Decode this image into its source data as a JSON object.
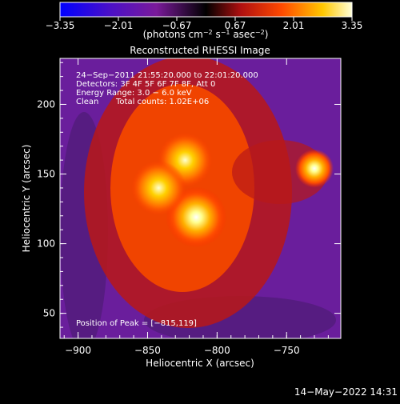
{
  "chart_data": {
    "type": "heatmap",
    "title": "Reconstructed RHESSI Image",
    "xlabel": "Heliocentric X (arcsec)",
    "ylabel": "Heliocentric Y (arcsec)",
    "xlim": [
      -913,
      -711
    ],
    "ylim": [
      32,
      233
    ],
    "x_ticks": [
      -900,
      -850,
      -800,
      -750
    ],
    "x_tick_labels": [
      "−900",
      "−850",
      "−800",
      "−750"
    ],
    "y_ticks": [
      50,
      100,
      150,
      200
    ],
    "y_tick_labels": [
      "50",
      "100",
      "150",
      "200"
    ],
    "colorbar": {
      "min": -3.35,
      "max": 3.35,
      "ticks": [
        -3.35,
        -2.01,
        -0.67,
        0.67,
        2.01,
        3.35
      ],
      "tick_labels": [
        "−3.35",
        "−2.01",
        "−0.67",
        "0.67",
        "2.01",
        "3.35"
      ],
      "label_base": "(photons cm",
      "label_sup1": "−2",
      "label_mid1": " s",
      "label_sup2": "−1",
      "label_mid2": " asec",
      "label_sup3": "−2",
      "label_end": ")"
    },
    "annotations": {
      "line1": "24−Sep−2011 21:55:20.000 to 22:01:20.000",
      "line2": "Detectors: 3F 4F 5F 6F 7F 8F, Att 0",
      "line3": "Energy Range: 3.0 − 6.0 keV",
      "line4_a": "Clean",
      "line4_b": "Total counts: 1.02E+06",
      "peak": "Position of Peak = [−815,119]"
    },
    "sources": [
      {
        "x": -815,
        "y": 119,
        "intensity": 3.35
      },
      {
        "x": -823,
        "y": 160,
        "intensity": 2.9
      },
      {
        "x": -842,
        "y": 140,
        "intensity": 2.7
      },
      {
        "x": -730,
        "y": 154,
        "intensity": 3.2
      }
    ],
    "grid": false,
    "legend": "none"
  },
  "footer": {
    "timestamp": "14−May−2022 14:31"
  }
}
